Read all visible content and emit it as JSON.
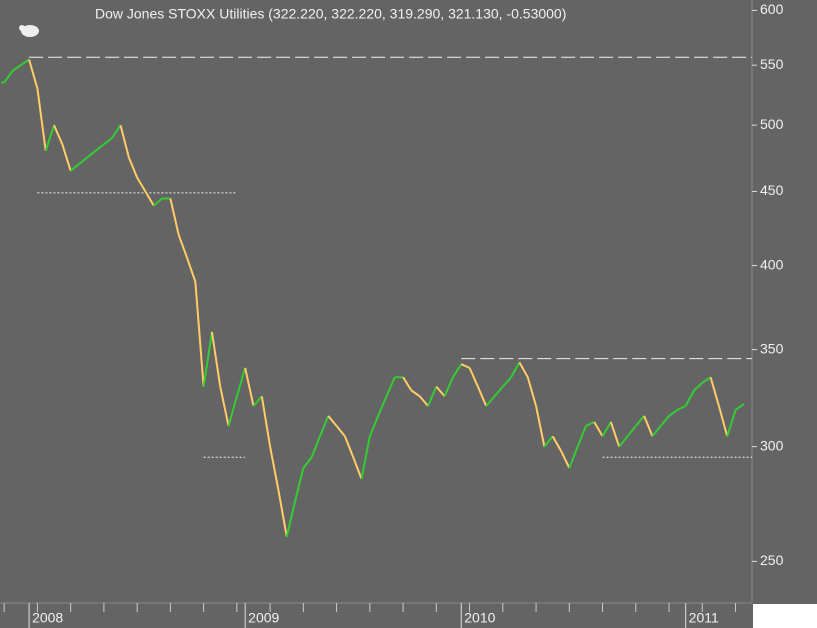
{
  "chart_data": {
    "type": "line",
    "title": "Dow Jones STOXX Utilities (322.220, 322.220, 319.290, 321.130, -0.53000)",
    "categories": [
      null,
      null,
      null,
      "2008",
      null,
      null,
      null,
      null,
      null,
      null,
      null,
      null,
      null,
      null,
      null,
      null,
      null,
      null,
      null,
      null,
      null,
      null,
      null,
      null,
      null,
      null,
      null,
      null,
      null,
      "2009",
      null,
      null,
      null,
      null,
      null,
      null,
      null,
      null,
      null,
      null,
      null,
      null,
      null,
      null,
      null,
      null,
      null,
      null,
      null,
      null,
      null,
      null,
      null,
      null,
      null,
      "2010",
      null,
      null,
      null,
      null,
      null,
      null,
      null,
      null,
      null,
      null,
      null,
      null,
      null,
      null,
      null,
      null,
      null,
      null,
      null,
      null,
      null,
      null,
      null,
      null,
      null,
      null,
      "2011",
      null,
      null,
      null,
      null,
      null,
      null,
      null
    ],
    "values": [
      535,
      545,
      550,
      555,
      530,
      480,
      500,
      485,
      465,
      470,
      475,
      480,
      485,
      490,
      500,
      475,
      460,
      450,
      440,
      445,
      445,
      420,
      405,
      390,
      330,
      360,
      330,
      310,
      325,
      340,
      320,
      325,
      300,
      280,
      260,
      275,
      290,
      295,
      305,
      315,
      310,
      305,
      295,
      285,
      305,
      315,
      325,
      335,
      335,
      328,
      325,
      320,
      330,
      325,
      335,
      342,
      340,
      330,
      320,
      325,
      330,
      335,
      343,
      335,
      320,
      300,
      305,
      298,
      290,
      300,
      310,
      312,
      305,
      312,
      300,
      305,
      310,
      315,
      305,
      310,
      315,
      318,
      320,
      328,
      332,
      335,
      320,
      305,
      318,
      321
    ],
    "up_color": "#33cc33",
    "down_color": "#ffcc66",
    "log_scale": true,
    "ylim": [
      234,
      610
    ],
    "yticks": [
      250,
      300,
      350,
      400,
      450,
      500,
      550,
      600
    ],
    "reference_lines": [
      {
        "value": 557,
        "start": 3,
        "end": 89,
        "style": "dashed"
      },
      {
        "value": 449,
        "start": 4,
        "end": 27,
        "style": "dotted"
      },
      {
        "value": 295,
        "start": 24,
        "end": 28,
        "style": "dotted"
      },
      {
        "value": 345,
        "start": 55,
        "end": 89,
        "style": "dashed"
      },
      {
        "value": 295,
        "start": 72,
        "end": 89,
        "style": "dotted"
      }
    ]
  }
}
